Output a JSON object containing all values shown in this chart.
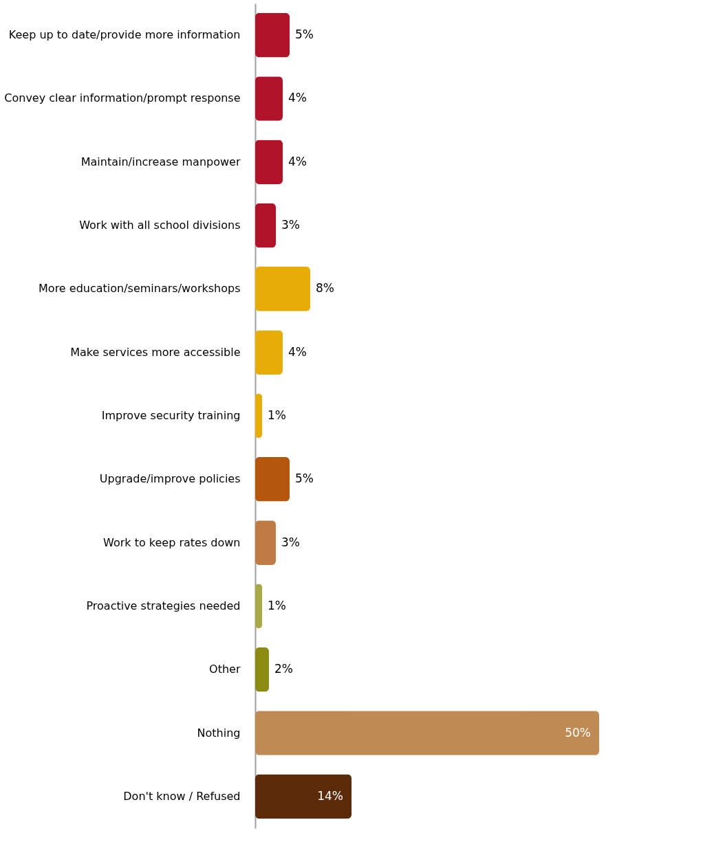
{
  "chart_data": {
    "type": "bar",
    "orientation": "horizontal",
    "categories": [
      "Keep up to date/provide more information",
      "Convey clear information/prompt response",
      "Maintain/increase manpower",
      "Work with all school divisions",
      "More education/seminars/workshops",
      "Make services more accessible",
      "Improve security training",
      "Upgrade/improve policies",
      "Work to keep rates down",
      "Proactive strategies needed",
      "Other",
      "Nothing",
      "Don't know / Refused"
    ],
    "values": [
      5,
      4,
      4,
      3,
      8,
      4,
      1,
      5,
      3,
      1,
      2,
      50,
      14
    ],
    "value_labels": [
      "5%",
      "4%",
      "4%",
      "3%",
      "8%",
      "4%",
      "1%",
      "5%",
      "3%",
      "1%",
      "2%",
      "50%",
      "14%"
    ],
    "colors": [
      "#b0132a",
      "#b0132a",
      "#b0132a",
      "#b0132a",
      "#e8ac08",
      "#e8ac08",
      "#e8ac08",
      "#b4560e",
      "#c07a44",
      "#a8a844",
      "#8c8c12",
      "#c08a54",
      "#5c2c0a"
    ],
    "grid": false
  }
}
